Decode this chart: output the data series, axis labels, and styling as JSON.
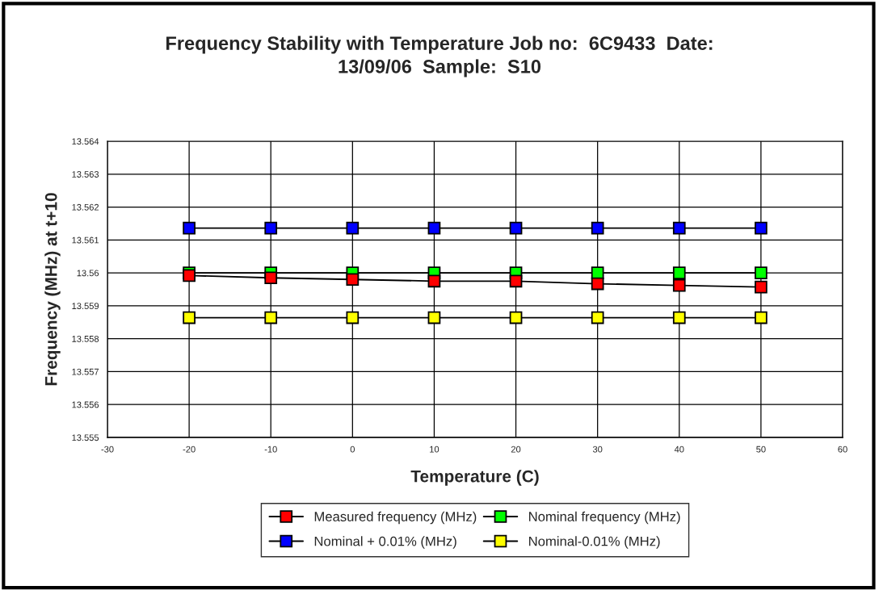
{
  "chart_data": {
    "type": "line",
    "title": "Frequency Stability with Temperature Job no:  6C9433  Date:\n13/09/06  Sample:  S10",
    "xlabel": "Temperature (C)",
    "ylabel": "Frequency (MHz) at t+10",
    "x": [
      -20,
      -10,
      0,
      10,
      20,
      30,
      40,
      50
    ],
    "series": [
      {
        "name": "Measured frequency (MHz)",
        "color": "#ff0000",
        "values": [
          13.55992,
          13.55985,
          13.5598,
          13.55975,
          13.55975,
          13.55967,
          13.55962,
          13.55957
        ]
      },
      {
        "name": "Nominal frequency (MHz)",
        "color": "#00ff00",
        "values": [
          13.56,
          13.56,
          13.56,
          13.56,
          13.56,
          13.56,
          13.56,
          13.56
        ]
      },
      {
        "name": "Nominal + 0.01% (MHz)",
        "color": "#0000ff",
        "values": [
          13.56136,
          13.56136,
          13.56136,
          13.56136,
          13.56136,
          13.56136,
          13.56136,
          13.56136
        ]
      },
      {
        "name": "Nominal-0.01% (MHz)",
        "color": "#ffff00",
        "values": [
          13.55864,
          13.55864,
          13.55864,
          13.55864,
          13.55864,
          13.55864,
          13.55864,
          13.55864
        ]
      }
    ],
    "xlim": [
      -30,
      60
    ],
    "xticks": [
      -30,
      -20,
      -10,
      0,
      10,
      20,
      30,
      40,
      50,
      60
    ],
    "ylim": [
      13.555,
      13.564
    ],
    "yticks": [
      13.555,
      13.556,
      13.557,
      13.558,
      13.559,
      13.56,
      13.561,
      13.562,
      13.563,
      13.564
    ],
    "grid": true,
    "legend": "bottom",
    "marker": "square",
    "line_style": "solid"
  }
}
